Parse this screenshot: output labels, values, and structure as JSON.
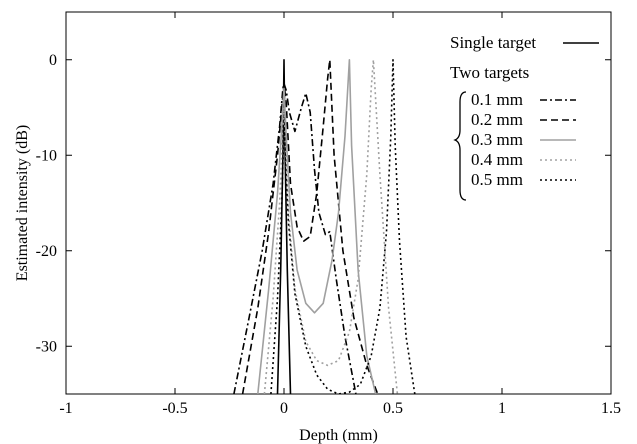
{
  "chart_data": {
    "type": "line",
    "title": "",
    "xlabel": "Depth (mm)",
    "ylabel": "Estimated intensity (dB)",
    "xlim": [
      -1,
      1.5
    ],
    "ylim": [
      -35,
      5
    ],
    "xticks": [
      -1,
      -0.5,
      0,
      0.5,
      1,
      1.5
    ],
    "xtick_labels": [
      "-1",
      "-0.5",
      "0",
      "0.5",
      "1",
      "1.5"
    ],
    "yticks": [
      0,
      -10,
      -20,
      -30
    ],
    "ytick_labels": [
      "0",
      "-10",
      "-20",
      "-30"
    ],
    "grid": false,
    "legend": {
      "position": "top-right",
      "heading": "Two targets",
      "entries": [
        "Single target",
        "0.1 mm",
        "0.2 mm",
        "0.3 mm",
        "0.4 mm",
        "0.5 mm"
      ]
    },
    "series": [
      {
        "name": "Single target",
        "style": "solid",
        "color": "#000000",
        "x": [
          -0.03,
          -0.015,
          -0.005,
          0,
          0.005,
          0.015,
          0.03
        ],
        "y": [
          -35,
          -22,
          -10,
          0,
          -10,
          -22,
          -35
        ]
      },
      {
        "name": "0.1 mm",
        "style": "dashdot",
        "color": "#000000",
        "x": [
          -0.23,
          -0.16,
          -0.1,
          -0.05,
          -0.02,
          -0.005,
          0,
          0.01,
          0.025,
          0.05,
          0.08,
          0.1,
          0.12,
          0.14,
          0.16,
          0.19,
          0.21,
          0.24,
          0.28,
          0.33
        ],
        "y": [
          -35,
          -27,
          -20,
          -13,
          -7,
          -3,
          -2.5,
          -3.2,
          -5.5,
          -7.5,
          -5,
          -3.5,
          -5.5,
          -11.5,
          -16,
          -18.3,
          -18,
          -23,
          -29,
          -35
        ]
      },
      {
        "name": "0.2 mm",
        "style": "dashed",
        "color": "#000000",
        "x": [
          -0.19,
          -0.12,
          -0.07,
          -0.03,
          -0.01,
          0,
          0.01,
          0.03,
          0.06,
          0.09,
          0.12,
          0.15,
          0.18,
          0.2,
          0.21,
          0.23,
          0.27,
          0.32,
          0.38,
          0.43
        ],
        "y": [
          -35,
          -26,
          -18,
          -10,
          -5,
          -2.5,
          -4.5,
          -13,
          -17.5,
          -19,
          -18.5,
          -14,
          -7,
          -2,
          0,
          -10,
          -20,
          -27,
          -32,
          -35
        ]
      },
      {
        "name": "0.3 mm",
        "style": "solid",
        "color": "#a0a0a0",
        "x": [
          -0.12,
          -0.07,
          -0.03,
          -0.01,
          0,
          0.01,
          0.03,
          0.06,
          0.1,
          0.14,
          0.18,
          0.22,
          0.25,
          0.28,
          0.3,
          0.31,
          0.34,
          0.38,
          0.42
        ],
        "y": [
          -35,
          -24,
          -14,
          -7,
          -3,
          -8,
          -16,
          -22,
          -25.5,
          -26.5,
          -25.5,
          -21,
          -16,
          -8,
          0,
          -9,
          -22,
          -31,
          -35
        ]
      },
      {
        "name": "0.4 mm",
        "style": "dotted",
        "color": "#a0a0a0",
        "x": [
          -0.09,
          -0.05,
          -0.02,
          0,
          0.02,
          0.05,
          0.1,
          0.15,
          0.2,
          0.25,
          0.3,
          0.34,
          0.38,
          0.4,
          0.41,
          0.44,
          0.48,
          0.52
        ],
        "y": [
          -35,
          -25,
          -15,
          -5,
          -16,
          -24,
          -29.5,
          -31.5,
          -32,
          -31.5,
          -28.5,
          -23,
          -12,
          -3,
          0,
          -12,
          -26,
          -35
        ]
      },
      {
        "name": "0.5 mm",
        "style": "dotted",
        "color": "#000000",
        "x": [
          -0.06,
          -0.03,
          -0.01,
          0,
          0.02,
          0.05,
          0.1,
          0.15,
          0.2,
          0.25,
          0.3,
          0.35,
          0.4,
          0.44,
          0.47,
          0.49,
          0.5,
          0.51,
          0.53,
          0.56,
          0.6
        ],
        "y": [
          -35,
          -25,
          -15,
          -7,
          -17,
          -24.5,
          -30,
          -33,
          -34.5,
          -35,
          -34.8,
          -34,
          -31,
          -26,
          -18,
          -8,
          0,
          -9,
          -19,
          -29,
          -35
        ]
      }
    ]
  }
}
